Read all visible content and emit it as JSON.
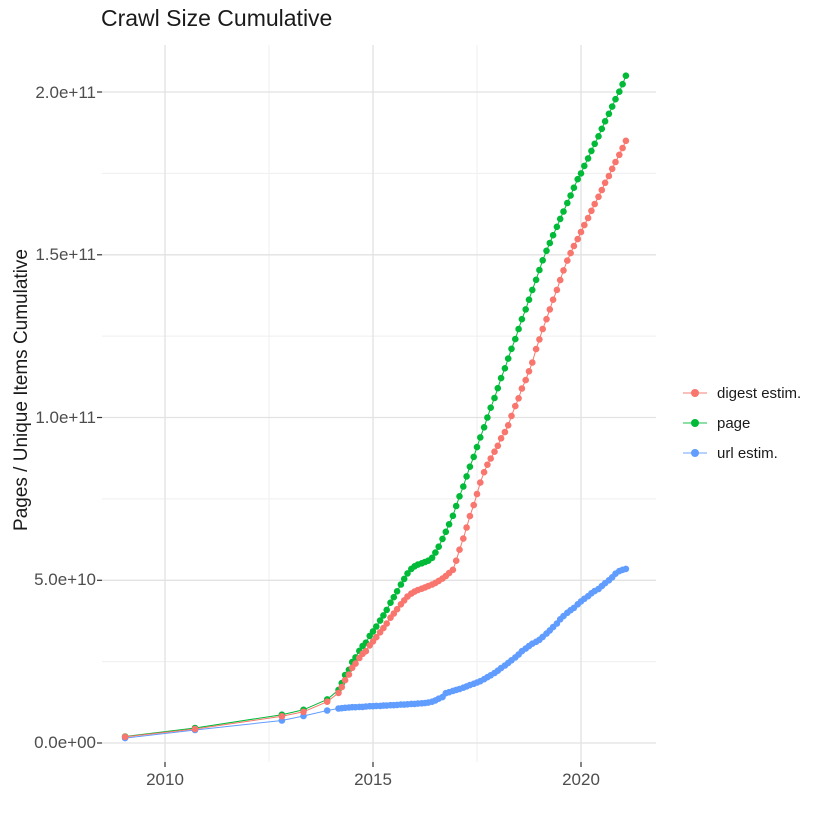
{
  "title": "Crawl Size Cumulative",
  "axes": {
    "y_axis_title": "Pages / Unique Items Cumulative",
    "x_tick_labels": [
      "2010",
      "2015",
      "2020"
    ],
    "y_tick_labels": [
      "0.0e+00",
      "5.0e+10",
      "1.0e+11",
      "1.5e+11",
      "2.0e+11"
    ]
  },
  "legend": {
    "items": [
      {
        "label": "digest estim.",
        "color": "#F8766D"
      },
      {
        "label": "page",
        "color": "#00BA38"
      },
      {
        "label": "url estim.",
        "color": "#619CFF"
      }
    ]
  },
  "chart_data": {
    "type": "scatter",
    "title": "Crawl Size Cumulative",
    "xlabel": "",
    "ylabel": "Pages / Unique Items Cumulative",
    "x_unit": "year",
    "y_unit": "count (values in billions, 1e9)",
    "xlim": [
      2008.55,
      2021.85
    ],
    "ylim_e9": [
      0,
      213
    ],
    "grid": true,
    "legend_position": "right",
    "x_ticks": {
      "major": [
        2010,
        2015,
        2020
      ],
      "minor": [
        2012.5,
        2017.5
      ]
    },
    "y_ticks": {
      "major_values_e9": [
        0,
        50,
        100,
        150,
        200
      ],
      "major_labels": [
        "0.0e+00",
        "5.0e+10",
        "1.0e+11",
        "1.5e+11",
        "2.0e+11"
      ],
      "minor_values_e9": [
        25,
        75,
        125,
        175
      ]
    },
    "series": [
      {
        "name": "digest estim.",
        "color": "#F8766D",
        "points_year_value_e9": [
          [
            2009.04,
            1.9
          ],
          [
            2010.72,
            4.3
          ],
          [
            2012.81,
            8.2
          ],
          [
            2013.33,
            9.6
          ],
          [
            2013.9,
            12.7
          ],
          [
            2014.17,
            15.4
          ],
          [
            2014.25,
            17.2
          ],
          [
            2014.33,
            19.3
          ],
          [
            2014.42,
            21.0
          ],
          [
            2014.5,
            23.1
          ],
          [
            2014.58,
            24.4
          ],
          [
            2014.67,
            26.1
          ],
          [
            2014.75,
            27.4
          ],
          [
            2014.83,
            28.2
          ],
          [
            2014.92,
            30.0
          ],
          [
            2015.0,
            31.2
          ],
          [
            2015.08,
            32.5
          ],
          [
            2015.17,
            34.0
          ],
          [
            2015.25,
            35.3
          ],
          [
            2015.33,
            36.7
          ],
          [
            2015.42,
            38.5
          ],
          [
            2015.5,
            39.8
          ],
          [
            2015.58,
            41.1
          ],
          [
            2015.67,
            42.6
          ],
          [
            2015.75,
            43.8
          ],
          [
            2015.83,
            45.0
          ],
          [
            2015.92,
            45.9
          ],
          [
            2016.0,
            46.5
          ],
          [
            2016.08,
            47.0
          ],
          [
            2016.17,
            47.4
          ],
          [
            2016.25,
            47.8
          ],
          [
            2016.33,
            48.2
          ],
          [
            2016.42,
            48.7
          ],
          [
            2016.5,
            49.2
          ],
          [
            2016.58,
            49.8
          ],
          [
            2016.67,
            50.5
          ],
          [
            2016.75,
            51.3
          ],
          [
            2016.83,
            52.2
          ],
          [
            2016.92,
            53.2
          ],
          [
            2017.0,
            56.0
          ],
          [
            2017.08,
            59.4
          ],
          [
            2017.17,
            62.8
          ],
          [
            2017.25,
            66.2
          ],
          [
            2017.33,
            69.7
          ],
          [
            2017.42,
            73.1
          ],
          [
            2017.5,
            76.5
          ],
          [
            2017.58,
            80.0
          ],
          [
            2017.67,
            83.2
          ],
          [
            2017.75,
            85.5
          ],
          [
            2017.83,
            87.4
          ],
          [
            2017.92,
            89.5
          ],
          [
            2018.0,
            91.3
          ],
          [
            2018.08,
            93.6
          ],
          [
            2018.17,
            95.5
          ],
          [
            2018.25,
            97.6
          ],
          [
            2018.33,
            100.5
          ],
          [
            2018.42,
            103.5
          ],
          [
            2018.5,
            105.9
          ],
          [
            2018.58,
            108.9
          ],
          [
            2018.67,
            111.5
          ],
          [
            2018.75,
            114.2
          ],
          [
            2018.83,
            116.9
          ],
          [
            2018.92,
            121.0
          ],
          [
            2019.0,
            124.0
          ],
          [
            2019.08,
            127.2
          ],
          [
            2019.17,
            130.2
          ],
          [
            2019.25,
            133.2
          ],
          [
            2019.33,
            136.2
          ],
          [
            2019.42,
            139.2
          ],
          [
            2019.5,
            142.2
          ],
          [
            2019.58,
            145.2
          ],
          [
            2019.67,
            148.2
          ],
          [
            2019.75,
            150.5
          ],
          [
            2019.83,
            152.7
          ],
          [
            2019.92,
            154.8
          ],
          [
            2020.0,
            157.0
          ],
          [
            2020.08,
            159.1
          ],
          [
            2020.17,
            161.3
          ],
          [
            2020.25,
            163.5
          ],
          [
            2020.33,
            165.6
          ],
          [
            2020.42,
            167.8
          ],
          [
            2020.5,
            169.9
          ],
          [
            2020.58,
            172.1
          ],
          [
            2020.67,
            174.2
          ],
          [
            2020.75,
            176.4
          ],
          [
            2020.83,
            178.5
          ],
          [
            2020.92,
            180.7
          ],
          [
            2021.0,
            182.8
          ],
          [
            2021.08,
            185.0
          ]
        ]
      },
      {
        "name": "page",
        "color": "#00BA38",
        "points_year_value_e9": [
          [
            2009.04,
            2.0
          ],
          [
            2010.72,
            4.6
          ],
          [
            2012.81,
            8.7
          ],
          [
            2013.33,
            10.2
          ],
          [
            2013.9,
            13.4
          ],
          [
            2014.17,
            16.3
          ],
          [
            2014.25,
            18.4
          ],
          [
            2014.33,
            20.9
          ],
          [
            2014.42,
            22.5
          ],
          [
            2014.5,
            24.9
          ],
          [
            2014.58,
            26.3
          ],
          [
            2014.67,
            28.3
          ],
          [
            2014.75,
            29.8
          ],
          [
            2014.83,
            30.8
          ],
          [
            2014.92,
            32.9
          ],
          [
            2015.0,
            34.3
          ],
          [
            2015.08,
            35.8
          ],
          [
            2015.17,
            37.6
          ],
          [
            2015.25,
            39.2
          ],
          [
            2015.33,
            40.9
          ],
          [
            2015.42,
            43.1
          ],
          [
            2015.5,
            44.8
          ],
          [
            2015.58,
            46.6
          ],
          [
            2015.67,
            48.7
          ],
          [
            2015.75,
            50.4
          ],
          [
            2015.83,
            52.1
          ],
          [
            2015.92,
            53.5
          ],
          [
            2016.0,
            54.3
          ],
          [
            2016.08,
            54.8
          ],
          [
            2016.17,
            55.2
          ],
          [
            2016.25,
            55.6
          ],
          [
            2016.33,
            56.0
          ],
          [
            2016.42,
            56.9
          ],
          [
            2016.5,
            58.5
          ],
          [
            2016.58,
            60.3
          ],
          [
            2016.67,
            62.7
          ],
          [
            2016.75,
            64.9
          ],
          [
            2016.83,
            67.2
          ],
          [
            2016.92,
            69.8
          ],
          [
            2017.0,
            72.8
          ],
          [
            2017.08,
            75.8
          ],
          [
            2017.17,
            78.8
          ],
          [
            2017.25,
            81.9
          ],
          [
            2017.33,
            84.9
          ],
          [
            2017.42,
            87.9
          ],
          [
            2017.5,
            90.9
          ],
          [
            2017.58,
            93.9
          ],
          [
            2017.67,
            97.0
          ],
          [
            2017.75,
            100.0
          ],
          [
            2017.83,
            103.0
          ],
          [
            2017.92,
            106.0
          ],
          [
            2018.0,
            109.0
          ],
          [
            2018.08,
            112.1
          ],
          [
            2018.17,
            115.1
          ],
          [
            2018.25,
            118.1
          ],
          [
            2018.33,
            121.1
          ],
          [
            2018.42,
            124.1
          ],
          [
            2018.5,
            127.2
          ],
          [
            2018.58,
            130.2
          ],
          [
            2018.67,
            133.2
          ],
          [
            2018.75,
            136.2
          ],
          [
            2018.83,
            139.2
          ],
          [
            2018.92,
            142.3
          ],
          [
            2019.0,
            145.3
          ],
          [
            2019.08,
            148.3
          ],
          [
            2019.17,
            151.2
          ],
          [
            2019.25,
            153.6
          ],
          [
            2019.33,
            156.0
          ],
          [
            2019.42,
            158.6
          ],
          [
            2019.5,
            161.0
          ],
          [
            2019.58,
            163.3
          ],
          [
            2019.67,
            165.9
          ],
          [
            2019.75,
            168.2
          ],
          [
            2019.83,
            170.6
          ],
          [
            2019.92,
            173.2
          ],
          [
            2020.0,
            175.0
          ],
          [
            2020.08,
            177.3
          ],
          [
            2020.17,
            179.6
          ],
          [
            2020.25,
            181.9
          ],
          [
            2020.33,
            184.1
          ],
          [
            2020.42,
            186.4
          ],
          [
            2020.5,
            188.7
          ],
          [
            2020.58,
            191.0
          ],
          [
            2020.67,
            193.3
          ],
          [
            2020.75,
            195.5
          ],
          [
            2020.83,
            197.8
          ],
          [
            2020.92,
            200.1
          ],
          [
            2021.0,
            202.4
          ],
          [
            2021.08,
            205.0
          ]
        ]
      },
      {
        "name": "url estim.",
        "color": "#619CFF",
        "points_year_value_e9": [
          [
            2009.04,
            1.5
          ],
          [
            2010.72,
            4.0
          ],
          [
            2012.81,
            6.9
          ],
          [
            2013.33,
            8.3
          ],
          [
            2013.9,
            10.0
          ],
          [
            2014.17,
            10.6
          ],
          [
            2014.25,
            10.7
          ],
          [
            2014.33,
            10.8
          ],
          [
            2014.42,
            10.9
          ],
          [
            2014.5,
            11.0
          ],
          [
            2014.58,
            11.0
          ],
          [
            2014.67,
            11.1
          ],
          [
            2014.75,
            11.1
          ],
          [
            2014.83,
            11.2
          ],
          [
            2014.92,
            11.3
          ],
          [
            2015.0,
            11.3
          ],
          [
            2015.08,
            11.4
          ],
          [
            2015.17,
            11.4
          ],
          [
            2015.25,
            11.5
          ],
          [
            2015.33,
            11.5
          ],
          [
            2015.42,
            11.6
          ],
          [
            2015.5,
            11.6
          ],
          [
            2015.58,
            11.7
          ],
          [
            2015.67,
            11.8
          ],
          [
            2015.75,
            11.8
          ],
          [
            2015.83,
            11.9
          ],
          [
            2015.92,
            12.0
          ],
          [
            2016.0,
            12.0
          ],
          [
            2016.08,
            12.1
          ],
          [
            2016.17,
            12.2
          ],
          [
            2016.25,
            12.3
          ],
          [
            2016.33,
            12.4
          ],
          [
            2016.42,
            12.7
          ],
          [
            2016.5,
            13.1
          ],
          [
            2016.58,
            13.6
          ],
          [
            2016.67,
            14.1
          ],
          [
            2016.75,
            15.3
          ],
          [
            2016.83,
            15.6
          ],
          [
            2016.92,
            16.0
          ],
          [
            2017.0,
            16.3
          ],
          [
            2017.08,
            16.6
          ],
          [
            2017.17,
            17.0
          ],
          [
            2017.25,
            17.4
          ],
          [
            2017.33,
            17.8
          ],
          [
            2017.42,
            18.2
          ],
          [
            2017.5,
            18.6
          ],
          [
            2017.58,
            19.0
          ],
          [
            2017.67,
            19.6
          ],
          [
            2017.75,
            20.2
          ],
          [
            2017.83,
            20.8
          ],
          [
            2017.92,
            21.5
          ],
          [
            2018.0,
            22.2
          ],
          [
            2018.08,
            23.0
          ],
          [
            2018.17,
            23.8
          ],
          [
            2018.25,
            24.6
          ],
          [
            2018.33,
            25.4
          ],
          [
            2018.42,
            26.3
          ],
          [
            2018.5,
            27.2
          ],
          [
            2018.58,
            28.2
          ],
          [
            2018.67,
            29.0
          ],
          [
            2018.75,
            29.8
          ],
          [
            2018.83,
            30.5
          ],
          [
            2018.92,
            31.1
          ],
          [
            2019.0,
            31.7
          ],
          [
            2019.08,
            32.6
          ],
          [
            2019.17,
            33.6
          ],
          [
            2019.25,
            34.6
          ],
          [
            2019.33,
            35.6
          ],
          [
            2019.42,
            36.7
          ],
          [
            2019.5,
            38.0
          ],
          [
            2019.58,
            39.0
          ],
          [
            2019.67,
            40.0
          ],
          [
            2019.75,
            40.8
          ],
          [
            2019.83,
            41.5
          ],
          [
            2019.92,
            42.6
          ],
          [
            2020.0,
            43.5
          ],
          [
            2020.08,
            44.3
          ],
          [
            2020.17,
            45.1
          ],
          [
            2020.25,
            46.0
          ],
          [
            2020.33,
            46.7
          ],
          [
            2020.42,
            47.3
          ],
          [
            2020.5,
            48.2
          ],
          [
            2020.58,
            49.1
          ],
          [
            2020.67,
            50.0
          ],
          [
            2020.75,
            50.9
          ],
          [
            2020.83,
            52.0
          ],
          [
            2020.92,
            52.8
          ],
          [
            2021.0,
            53.2
          ],
          [
            2021.08,
            53.5
          ]
        ]
      }
    ]
  }
}
